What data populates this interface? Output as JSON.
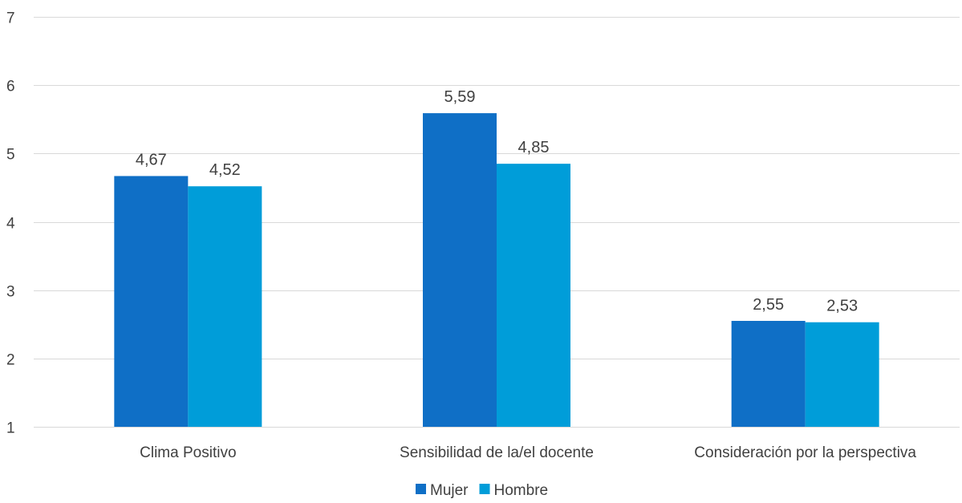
{
  "chart_data": {
    "type": "bar",
    "categories": [
      "Clima Positivo",
      "Sensibilidad de la/el docente",
      "Consideración por la perspectiva"
    ],
    "series": [
      {
        "name": "Mujer",
        "values": [
          4.67,
          5.59,
          2.55
        ],
        "labels": [
          "4,67",
          "5,59",
          "2,55"
        ],
        "color": "#0F6FC6"
      },
      {
        "name": "Hombre",
        "values": [
          4.52,
          4.85,
          2.53
        ],
        "labels": [
          "4,52",
          "4,85",
          "2,53"
        ],
        "color": "#009DD9"
      }
    ],
    "ylim": [
      1,
      7
    ],
    "yticks": [
      1,
      2,
      3,
      4,
      5,
      6,
      7
    ],
    "title": "",
    "xlabel": "",
    "ylabel": "",
    "grid": true,
    "legend": "bottom"
  }
}
